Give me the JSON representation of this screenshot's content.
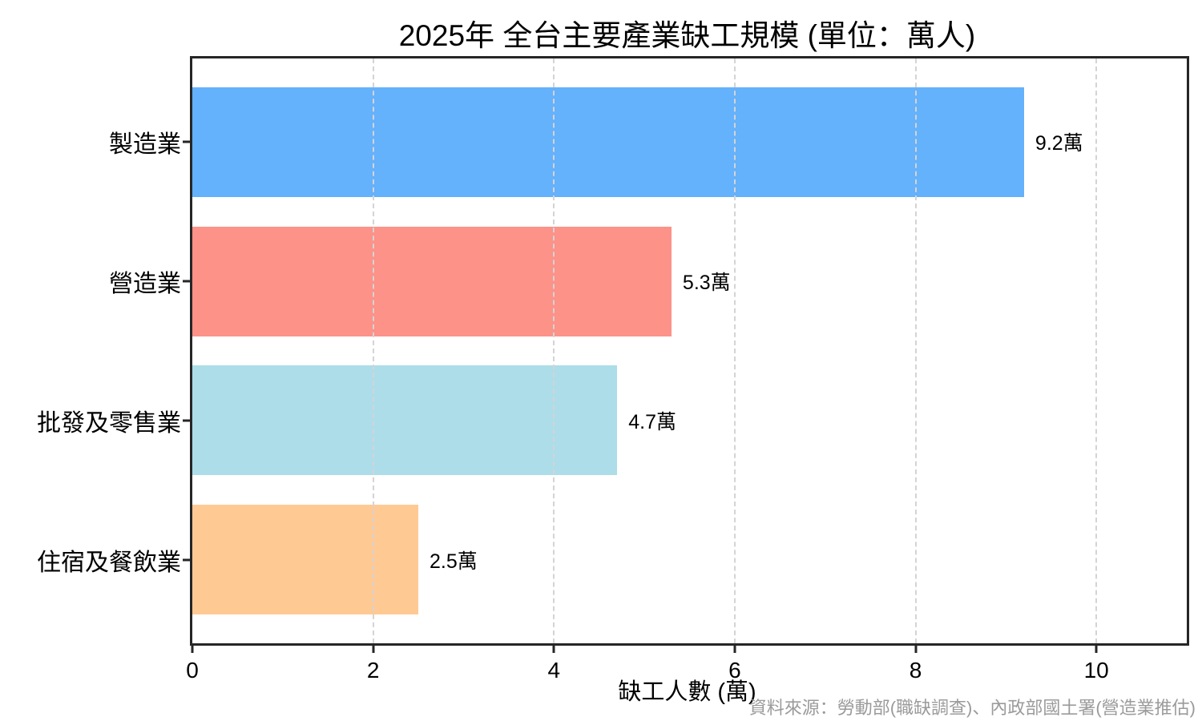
{
  "chart_data": {
    "type": "bar",
    "orientation": "horizontal",
    "title": "2025年 全台主要產業缺工規模 (單位：萬人)",
    "categories": [
      "製造業",
      "營造業",
      "批發及零售業",
      "住宿及餐飲業"
    ],
    "values": [
      9.2,
      5.3,
      4.7,
      2.5
    ],
    "value_labels": [
      "9.2萬",
      "5.3萬",
      "4.7萬",
      "2.5萬"
    ],
    "bar_colors": [
      "#64b1fc",
      "#fc9288",
      "#addde9",
      "#ffc994"
    ],
    "xlabel": "缺工人數 (萬)",
    "ylabel": "",
    "xlim": [
      0,
      11
    ],
    "xticks": [
      0,
      2,
      4,
      6,
      8,
      10
    ],
    "grid": "vertical-dashed-over-bars",
    "legend": "none",
    "source_note": "資料來源：勞動部(職缺調查)、內政部國土署(營造業推估)"
  },
  "colors": {
    "frame": "#262626",
    "grid": "#d4d4d4",
    "source_text": "#9b9b9b",
    "background": "#ffffff"
  }
}
